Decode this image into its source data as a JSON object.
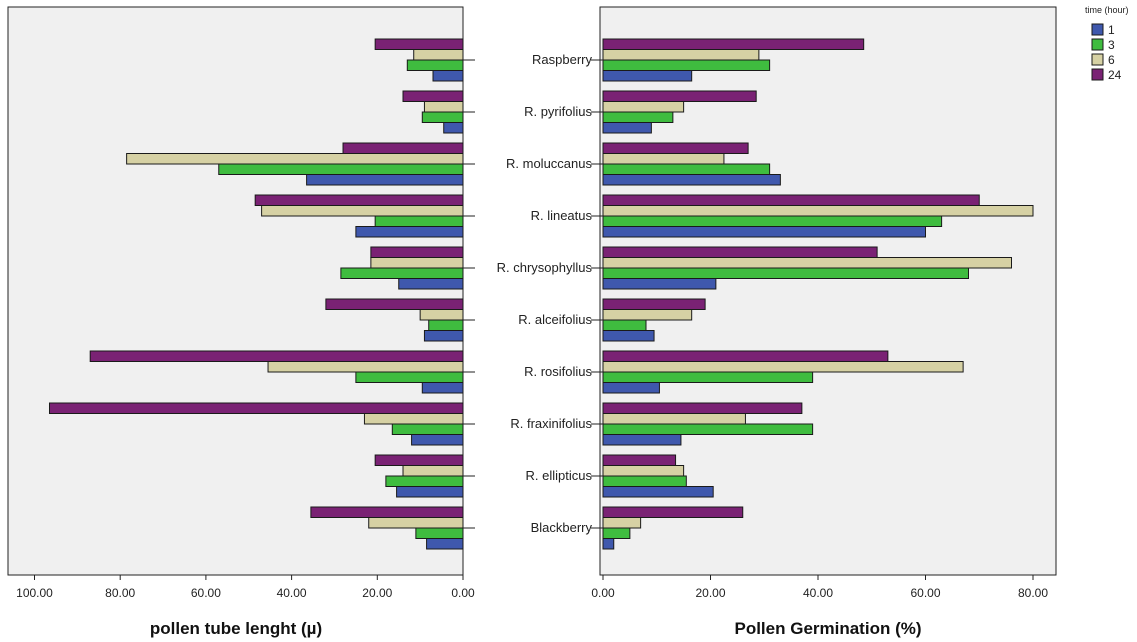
{
  "chart_data": [
    {
      "type": "bar",
      "orientation": "horizontal",
      "direction": "reversed",
      "xlabel": "pollen tube lenght (µ)",
      "xlim": [
        0,
        100
      ],
      "ticks": [
        "100.00",
        "80.00",
        "60.00",
        "40.00",
        "20.00",
        "0.00"
      ],
      "tick_values": [
        100,
        80,
        60,
        40,
        20,
        0
      ],
      "grid": false,
      "categories": [
        "Raspberry",
        "R. pyrifolius",
        "R. moluccanus",
        "R. lineatus",
        "R. chrysophyllus",
        "R. alceifolius",
        "R. rosifolius",
        "R. fraxinifolius",
        "R. ellipticus",
        "Blackberry"
      ],
      "series": [
        {
          "name": "1",
          "values": [
            7,
            4.5,
            36.5,
            25,
            15,
            9,
            9.5,
            12,
            15.5,
            8.5
          ]
        },
        {
          "name": "3",
          "values": [
            13,
            9.5,
            57,
            20.5,
            28.5,
            8,
            25,
            16.5,
            18,
            11
          ]
        },
        {
          "name": "6",
          "values": [
            11.5,
            9,
            78.5,
            47,
            21.5,
            10,
            45.5,
            23,
            14,
            22
          ]
        },
        {
          "name": "24",
          "values": [
            20.5,
            14,
            28,
            48.5,
            21.5,
            32,
            87,
            96.5,
            20.5,
            35.5
          ]
        }
      ]
    },
    {
      "type": "bar",
      "orientation": "horizontal",
      "xlabel": "Pollen Germination (%)",
      "xlim": [
        0,
        82
      ],
      "ticks": [
        "0.00",
        "20.00",
        "40.00",
        "60.00",
        "80.00"
      ],
      "tick_values": [
        0,
        20,
        40,
        60,
        80
      ],
      "grid": false,
      "categories": [
        "Raspberry",
        "R. pyrifolius",
        "R. moluccanus",
        "R. lineatus",
        "R. chrysophyllus",
        "R. alceifolius",
        "R. rosifolius",
        "R. fraxinifolius",
        "R. ellipticus",
        "Blackberry"
      ],
      "series": [
        {
          "name": "1",
          "values": [
            16.5,
            9,
            33,
            60,
            21,
            9.5,
            10.5,
            14.5,
            20.5,
            2
          ]
        },
        {
          "name": "3",
          "values": [
            31,
            13,
            31,
            63,
            68,
            8,
            39,
            39,
            15.5,
            5
          ]
        },
        {
          "name": "6",
          "values": [
            29,
            15,
            22.5,
            80,
            76,
            16.5,
            67,
            26.5,
            15,
            7
          ]
        },
        {
          "name": "24",
          "values": [
            48.5,
            28.5,
            27,
            70,
            51,
            19,
            53,
            37,
            13.5,
            26
          ]
        }
      ]
    }
  ],
  "legend": {
    "title": "time (hour)",
    "placement": "top-right",
    "items": [
      {
        "label": "1",
        "color": "#3f58ad"
      },
      {
        "label": "3",
        "color": "#3fbc3f"
      },
      {
        "label": "6",
        "color": "#d6d1a4"
      },
      {
        "label": "24",
        "color": "#7a2274"
      }
    ]
  },
  "colors": {
    "plot_background": "#f0f0f0",
    "axis": "#222222",
    "bar_stroke": "#1a1a1a"
  }
}
